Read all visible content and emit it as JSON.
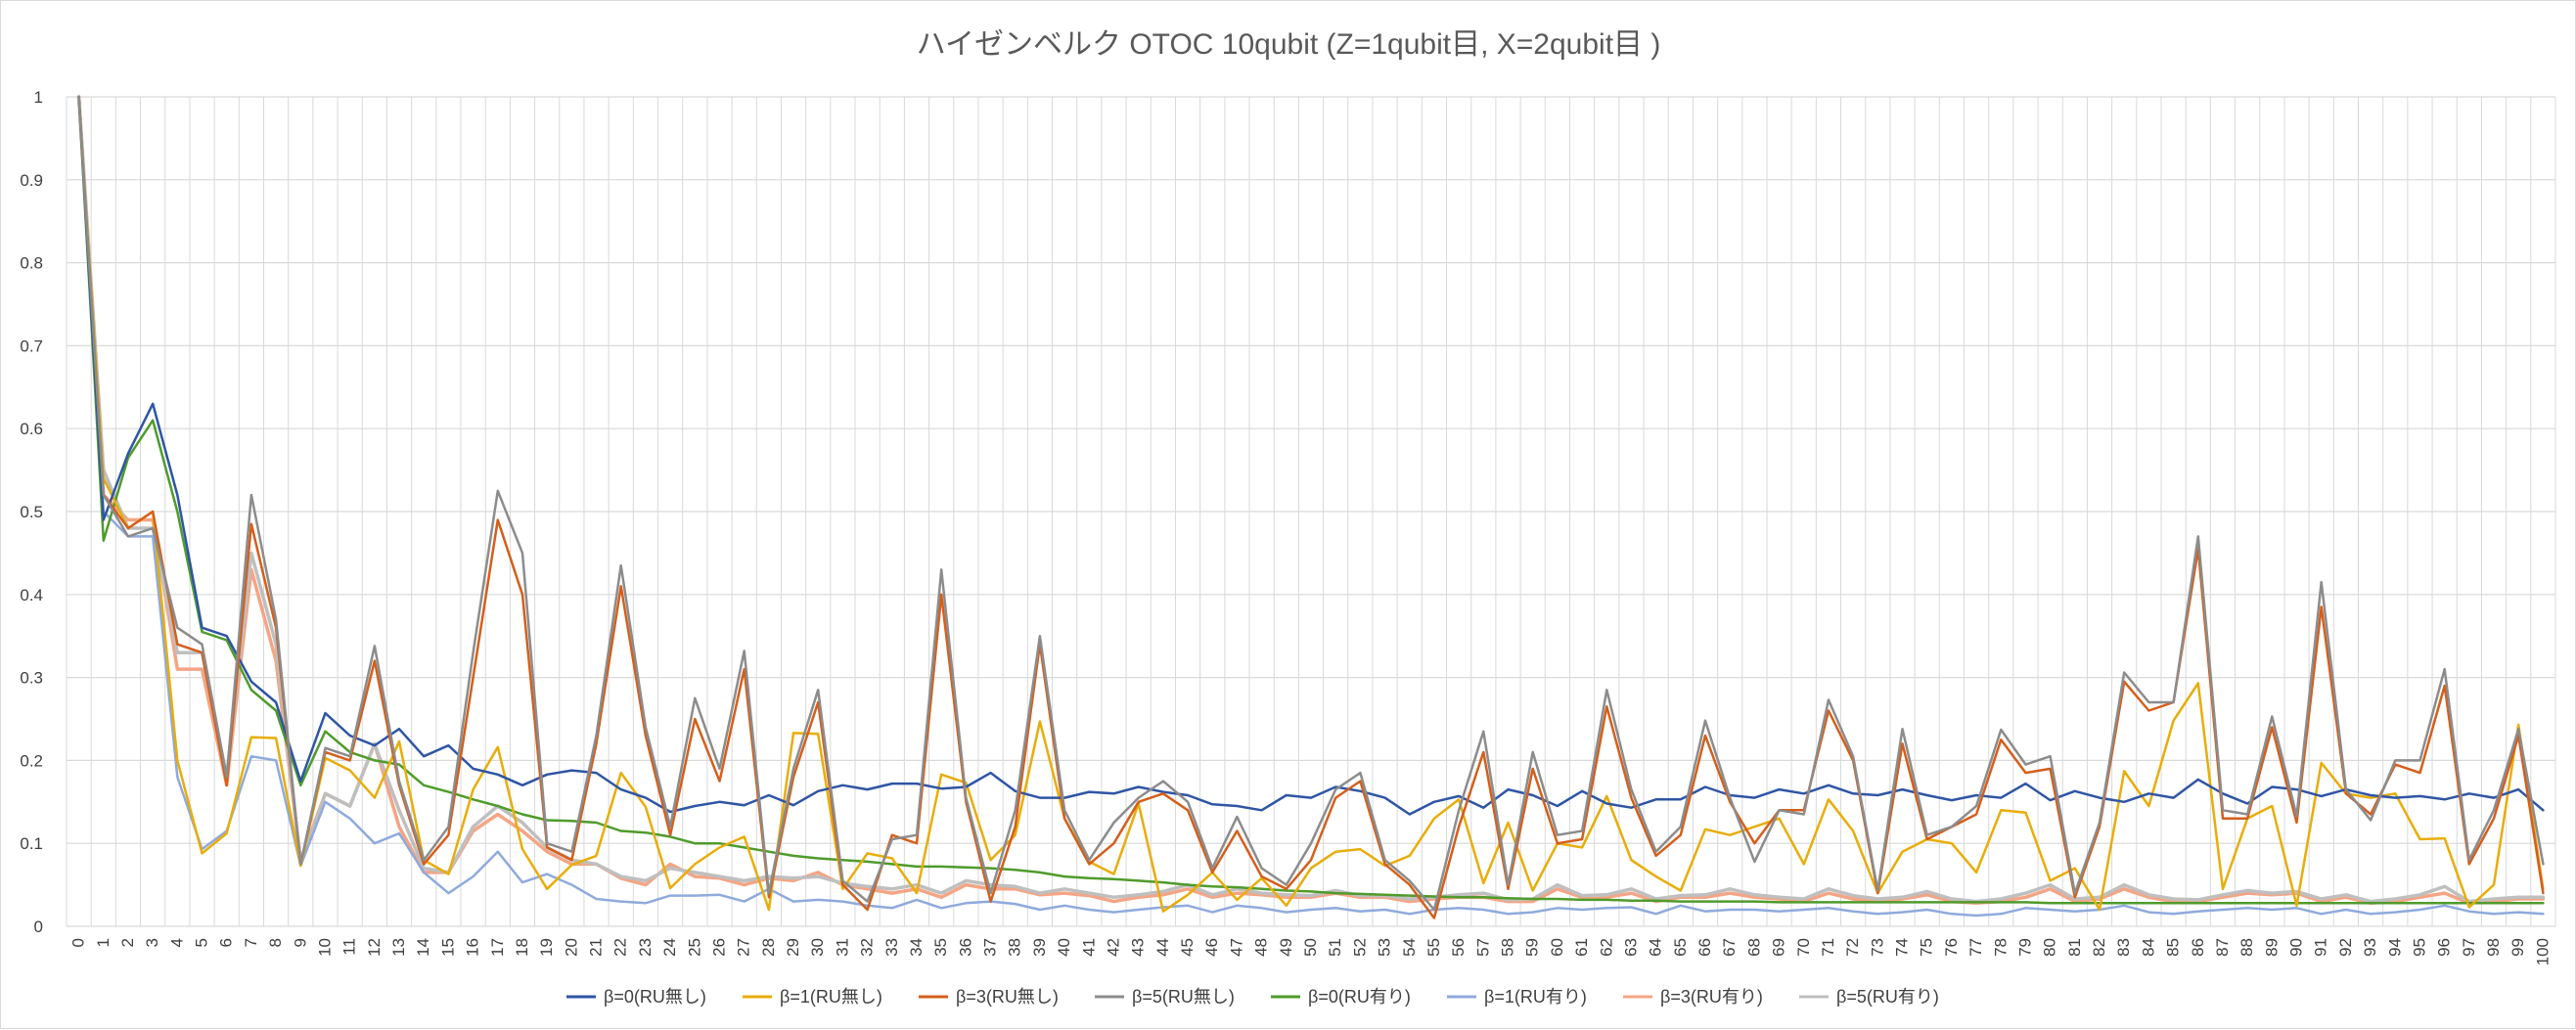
{
  "chart_data": {
    "type": "line",
    "title": "ハイゼンベルク OTOC 10qubit (Z=1qubit目, X=2qubit目 )",
    "xlabel": "",
    "ylabel": "",
    "ylim": [
      0,
      1
    ],
    "y_ticks": [
      "0",
      "0.1",
      "0.2",
      "0.3",
      "0.4",
      "0.5",
      "0.6",
      "0.7",
      "0.8",
      "0.9",
      "1"
    ],
    "grid": true,
    "legend_position": "bottom",
    "x": [
      0,
      1,
      2,
      3,
      4,
      5,
      6,
      7,
      8,
      9,
      10,
      11,
      12,
      13,
      14,
      15,
      16,
      17,
      18,
      19,
      20,
      21,
      22,
      23,
      24,
      25,
      26,
      27,
      28,
      29,
      30,
      31,
      32,
      33,
      34,
      35,
      36,
      37,
      38,
      39,
      40,
      41,
      42,
      43,
      44,
      45,
      46,
      47,
      48,
      49,
      50,
      51,
      52,
      53,
      54,
      55,
      56,
      57,
      58,
      59,
      60,
      61,
      62,
      63,
      64,
      65,
      66,
      67,
      68,
      69,
      70,
      71,
      72,
      73,
      74,
      75,
      76,
      77,
      78,
      79,
      80,
      81,
      82,
      83,
      84,
      85,
      86,
      87,
      88,
      89,
      90,
      91,
      92,
      93,
      94,
      95,
      96,
      97,
      98,
      99,
      100
    ],
    "series": [
      {
        "name": "β=0(RU無し)",
        "color": "#2f55a4",
        "width": 2.5,
        "values": [
          1.0,
          0.49,
          0.57,
          0.63,
          0.52,
          0.36,
          0.35,
          0.295,
          0.27,
          0.175,
          0.257,
          0.23,
          0.218,
          0.238,
          0.205,
          0.218,
          0.19,
          0.183,
          0.17,
          0.183,
          0.188,
          0.185,
          0.165,
          0.155,
          0.138,
          0.145,
          0.15,
          0.146,
          0.158,
          0.146,
          0.163,
          0.17,
          0.165,
          0.172,
          0.172,
          0.166,
          0.168,
          0.185,
          0.163,
          0.155,
          0.155,
          0.162,
          0.16,
          0.168,
          0.162,
          0.158,
          0.147,
          0.145,
          0.14,
          0.158,
          0.155,
          0.168,
          0.163,
          0.155,
          0.135,
          0.15,
          0.157,
          0.143,
          0.165,
          0.158,
          0.145,
          0.163,
          0.148,
          0.143,
          0.153,
          0.153,
          0.168,
          0.158,
          0.155,
          0.165,
          0.16,
          0.17,
          0.16,
          0.158,
          0.165,
          0.158,
          0.152,
          0.158,
          0.155,
          0.172,
          0.152,
          0.163,
          0.155,
          0.15,
          0.16,
          0.155,
          0.177,
          0.16,
          0.148,
          0.168,
          0.165,
          0.157,
          0.165,
          0.158,
          0.155,
          0.157,
          0.153,
          0.16,
          0.155,
          0.165,
          0.14
        ]
      },
      {
        "name": "β=1(RU無し)",
        "color": "#e8ad0a",
        "width": 2.5,
        "values": [
          1.0,
          0.54,
          0.48,
          0.5,
          0.2,
          0.088,
          0.112,
          0.228,
          0.227,
          0.073,
          0.203,
          0.188,
          0.155,
          0.223,
          0.08,
          0.063,
          0.165,
          0.216,
          0.093,
          0.045,
          0.074,
          0.085,
          0.185,
          0.144,
          0.046,
          0.075,
          0.095,
          0.108,
          0.02,
          0.233,
          0.232,
          0.045,
          0.088,
          0.082,
          0.04,
          0.183,
          0.173,
          0.08,
          0.11,
          0.247,
          0.13,
          0.078,
          0.063,
          0.148,
          0.018,
          0.038,
          0.065,
          0.032,
          0.058,
          0.025,
          0.07,
          0.09,
          0.093,
          0.073,
          0.085,
          0.13,
          0.153,
          0.052,
          0.125,
          0.043,
          0.1,
          0.095,
          0.157,
          0.08,
          0.06,
          0.043,
          0.117,
          0.11,
          0.12,
          0.13,
          0.075,
          0.153,
          0.115,
          0.04,
          0.09,
          0.105,
          0.1,
          0.065,
          0.14,
          0.137,
          0.055,
          0.07,
          0.02,
          0.187,
          0.145,
          0.248,
          0.293,
          0.045,
          0.13,
          0.145,
          0.025,
          0.197,
          0.16,
          0.155,
          0.16,
          0.105,
          0.106,
          0.023,
          0.05,
          0.243,
          0.045
        ]
      },
      {
        "name": "β=3(RU無し)",
        "color": "#d45f1c",
        "width": 2.5,
        "values": [
          1.0,
          0.52,
          0.48,
          0.5,
          0.34,
          0.33,
          0.17,
          0.485,
          0.36,
          0.075,
          0.21,
          0.2,
          0.32,
          0.17,
          0.075,
          0.11,
          0.3,
          0.49,
          0.4,
          0.095,
          0.08,
          0.22,
          0.41,
          0.23,
          0.11,
          0.25,
          0.175,
          0.31,
          0.035,
          0.18,
          0.27,
          0.05,
          0.02,
          0.11,
          0.1,
          0.4,
          0.15,
          0.03,
          0.12,
          0.34,
          0.13,
          0.075,
          0.1,
          0.15,
          0.16,
          0.14,
          0.065,
          0.115,
          0.06,
          0.045,
          0.08,
          0.155,
          0.175,
          0.075,
          0.05,
          0.01,
          0.12,
          0.21,
          0.045,
          0.19,
          0.1,
          0.105,
          0.265,
          0.155,
          0.085,
          0.11,
          0.23,
          0.15,
          0.1,
          0.14,
          0.14,
          0.26,
          0.2,
          0.04,
          0.22,
          0.105,
          0.12,
          0.135,
          0.225,
          0.185,
          0.19,
          0.035,
          0.12,
          0.295,
          0.26,
          0.27,
          0.455,
          0.13,
          0.13,
          0.24,
          0.125,
          0.385,
          0.16,
          0.135,
          0.195,
          0.185,
          0.29,
          0.075,
          0.13,
          0.23,
          0.04
        ]
      },
      {
        "name": "β=5(RU無し)",
        "color": "#8c8c8c",
        "width": 2.5,
        "values": [
          1.0,
          0.52,
          0.47,
          0.48,
          0.36,
          0.34,
          0.18,
          0.52,
          0.37,
          0.075,
          0.215,
          0.205,
          0.338,
          0.175,
          0.08,
          0.12,
          0.33,
          0.525,
          0.45,
          0.1,
          0.09,
          0.23,
          0.435,
          0.24,
          0.12,
          0.275,
          0.19,
          0.332,
          0.04,
          0.19,
          0.285,
          0.055,
          0.03,
          0.105,
          0.11,
          0.43,
          0.155,
          0.04,
          0.14,
          0.35,
          0.14,
          0.08,
          0.125,
          0.155,
          0.175,
          0.15,
          0.07,
          0.132,
          0.07,
          0.05,
          0.1,
          0.165,
          0.185,
          0.08,
          0.055,
          0.02,
          0.14,
          0.235,
          0.05,
          0.21,
          0.11,
          0.115,
          0.285,
          0.165,
          0.09,
          0.12,
          0.248,
          0.155,
          0.078,
          0.14,
          0.135,
          0.273,
          0.205,
          0.043,
          0.238,
          0.11,
          0.12,
          0.145,
          0.237,
          0.195,
          0.205,
          0.04,
          0.125,
          0.306,
          0.27,
          0.27,
          0.47,
          0.14,
          0.135,
          0.253,
          0.133,
          0.415,
          0.165,
          0.128,
          0.2,
          0.2,
          0.31,
          0.08,
          0.14,
          0.238,
          0.075
        ]
      },
      {
        "name": "β=0(RU有り)",
        "color": "#4f9b2b",
        "width": 2.5,
        "values": [
          1.0,
          0.465,
          0.565,
          0.61,
          0.5,
          0.355,
          0.345,
          0.285,
          0.26,
          0.17,
          0.235,
          0.21,
          0.2,
          0.195,
          0.17,
          0.162,
          0.153,
          0.145,
          0.135,
          0.128,
          0.127,
          0.125,
          0.115,
          0.113,
          0.108,
          0.1,
          0.1,
          0.095,
          0.09,
          0.085,
          0.082,
          0.08,
          0.078,
          0.075,
          0.072,
          0.072,
          0.071,
          0.07,
          0.068,
          0.065,
          0.06,
          0.058,
          0.057,
          0.055,
          0.053,
          0.05,
          0.048,
          0.047,
          0.045,
          0.043,
          0.042,
          0.04,
          0.039,
          0.038,
          0.037,
          0.036,
          0.035,
          0.035,
          0.034,
          0.033,
          0.033,
          0.032,
          0.032,
          0.031,
          0.031,
          0.03,
          0.03,
          0.03,
          0.03,
          0.029,
          0.029,
          0.029,
          0.029,
          0.029,
          0.029,
          0.029,
          0.029,
          0.029,
          0.029,
          0.029,
          0.028,
          0.028,
          0.028,
          0.028,
          0.028,
          0.028,
          0.028,
          0.028,
          0.028,
          0.028,
          0.028,
          0.028,
          0.028,
          0.028,
          0.028,
          0.028,
          0.028,
          0.028,
          0.028,
          0.028,
          0.028
        ]
      },
      {
        "name": "β=1(RU有り)",
        "color": "#8faadc",
        "width": 2.5,
        "values": [
          1.0,
          0.5,
          0.47,
          0.47,
          0.18,
          0.093,
          0.115,
          0.205,
          0.2,
          0.073,
          0.15,
          0.13,
          0.1,
          0.112,
          0.065,
          0.04,
          0.06,
          0.09,
          0.053,
          0.063,
          0.05,
          0.033,
          0.03,
          0.028,
          0.037,
          0.037,
          0.038,
          0.03,
          0.045,
          0.03,
          0.032,
          0.03,
          0.025,
          0.022,
          0.032,
          0.022,
          0.028,
          0.03,
          0.027,
          0.02,
          0.025,
          0.02,
          0.017,
          0.02,
          0.023,
          0.025,
          0.017,
          0.025,
          0.022,
          0.017,
          0.02,
          0.022,
          0.018,
          0.02,
          0.015,
          0.02,
          0.022,
          0.02,
          0.015,
          0.017,
          0.022,
          0.02,
          0.022,
          0.023,
          0.015,
          0.025,
          0.018,
          0.02,
          0.02,
          0.018,
          0.02,
          0.022,
          0.018,
          0.015,
          0.017,
          0.02,
          0.015,
          0.013,
          0.015,
          0.022,
          0.02,
          0.018,
          0.02,
          0.025,
          0.017,
          0.015,
          0.018,
          0.02,
          0.022,
          0.02,
          0.022,
          0.015,
          0.02,
          0.015,
          0.017,
          0.02,
          0.025,
          0.018,
          0.015,
          0.017,
          0.015
        ]
      },
      {
        "name": "β=3(RU有り)",
        "color": "#f4a585",
        "width": 3.5,
        "values": [
          1.0,
          0.52,
          0.49,
          0.49,
          0.31,
          0.31,
          0.17,
          0.43,
          0.32,
          0.08,
          0.16,
          0.145,
          0.22,
          0.12,
          0.065,
          0.065,
          0.115,
          0.135,
          0.115,
          0.09,
          0.075,
          0.075,
          0.058,
          0.05,
          0.075,
          0.06,
          0.058,
          0.05,
          0.058,
          0.055,
          0.065,
          0.05,
          0.045,
          0.04,
          0.045,
          0.035,
          0.05,
          0.045,
          0.045,
          0.038,
          0.04,
          0.037,
          0.03,
          0.035,
          0.038,
          0.045,
          0.035,
          0.04,
          0.038,
          0.035,
          0.035,
          0.04,
          0.035,
          0.035,
          0.03,
          0.033,
          0.035,
          0.035,
          0.03,
          0.03,
          0.045,
          0.035,
          0.035,
          0.04,
          0.03,
          0.035,
          0.035,
          0.04,
          0.035,
          0.033,
          0.03,
          0.04,
          0.033,
          0.03,
          0.033,
          0.038,
          0.03,
          0.028,
          0.03,
          0.035,
          0.045,
          0.03,
          0.033,
          0.045,
          0.035,
          0.03,
          0.03,
          0.035,
          0.04,
          0.038,
          0.04,
          0.03,
          0.035,
          0.028,
          0.03,
          0.035,
          0.04,
          0.028,
          0.03,
          0.033,
          0.033
        ]
      },
      {
        "name": "β=5(RU有り)",
        "color": "#bfbfbf",
        "width": 3.5,
        "values": [
          1.0,
          0.55,
          0.48,
          0.48,
          0.33,
          0.33,
          0.18,
          0.45,
          0.34,
          0.075,
          0.16,
          0.145,
          0.22,
          0.14,
          0.07,
          0.065,
          0.12,
          0.145,
          0.125,
          0.095,
          0.08,
          0.075,
          0.06,
          0.055,
          0.07,
          0.065,
          0.06,
          0.055,
          0.06,
          0.058,
          0.06,
          0.052,
          0.048,
          0.045,
          0.05,
          0.04,
          0.055,
          0.05,
          0.048,
          0.04,
          0.045,
          0.04,
          0.035,
          0.038,
          0.042,
          0.05,
          0.038,
          0.045,
          0.04,
          0.038,
          0.037,
          0.043,
          0.037,
          0.037,
          0.033,
          0.035,
          0.038,
          0.04,
          0.032,
          0.033,
          0.05,
          0.037,
          0.038,
          0.045,
          0.033,
          0.037,
          0.038,
          0.045,
          0.038,
          0.035,
          0.033,
          0.045,
          0.037,
          0.033,
          0.035,
          0.042,
          0.033,
          0.03,
          0.033,
          0.04,
          0.05,
          0.033,
          0.035,
          0.05,
          0.038,
          0.033,
          0.032,
          0.038,
          0.043,
          0.04,
          0.042,
          0.033,
          0.038,
          0.03,
          0.033,
          0.038,
          0.048,
          0.03,
          0.033,
          0.035,
          0.035
        ]
      }
    ]
  }
}
